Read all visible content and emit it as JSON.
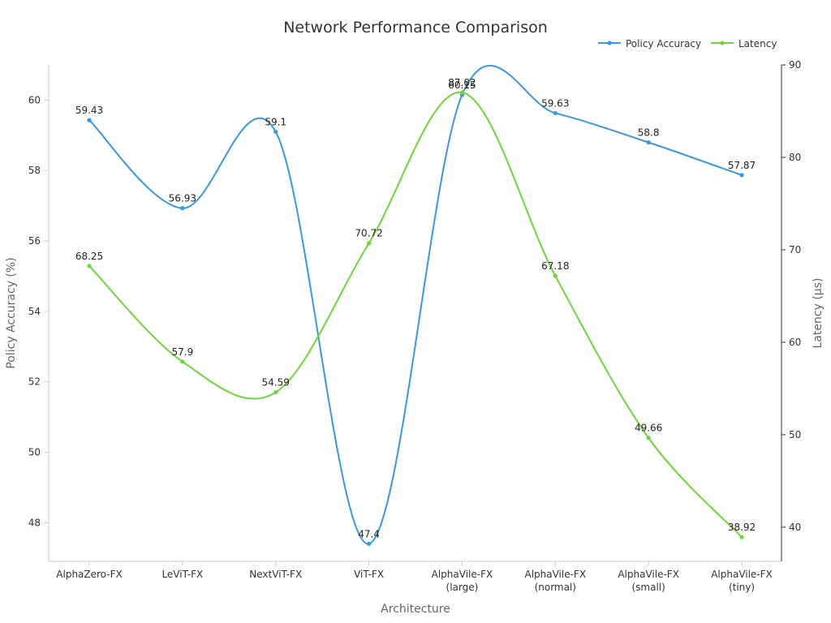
{
  "chart_data": {
    "type": "line",
    "title": "Network Performance Comparison",
    "xlabel": "Architecture",
    "categories": [
      [
        "AlphaZero-FX"
      ],
      [
        "LeViT-FX"
      ],
      [
        "NextViT-FX"
      ],
      [
        "ViT-FX"
      ],
      [
        "AlphaVile-FX",
        "(large)"
      ],
      [
        "AlphaVile-FX",
        "(normal)"
      ],
      [
        "AlphaVile-FX",
        "(small)"
      ],
      [
        "AlphaVile-FX",
        "(tiny)"
      ]
    ],
    "y_left": {
      "label": "Policy Accuracy (%)",
      "range": [
        46.9,
        61.0
      ],
      "ticks": [
        48,
        50,
        52,
        54,
        56,
        58,
        60
      ]
    },
    "y_right": {
      "label": "Latency (µs)",
      "range": [
        36.3,
        90.0
      ],
      "ticks": [
        40,
        50,
        60,
        70,
        80,
        90
      ]
    },
    "series": [
      {
        "name": "Policy Accuracy",
        "axis": "left",
        "color": "#3b97e0",
        "values": [
          59.43,
          56.93,
          59.1,
          47.4,
          60.15,
          59.63,
          58.8,
          57.87
        ],
        "labels": [
          "59.43",
          "56.93",
          "59.1",
          "47.4",
          "60.15",
          "59.63",
          "58.8",
          "57.87"
        ]
      },
      {
        "name": "Latency",
        "axis": "right",
        "color": "#6dd63c",
        "values": [
          68.25,
          57.9,
          54.59,
          70.72,
          87.02,
          67.18,
          49.66,
          38.92
        ],
        "labels": [
          "68.25",
          "57.9",
          "54.59",
          "70.72",
          "87.02",
          "67.18",
          "49.66",
          "38.92"
        ]
      }
    ],
    "legend": {
      "position": "top-right"
    },
    "grid": false
  }
}
